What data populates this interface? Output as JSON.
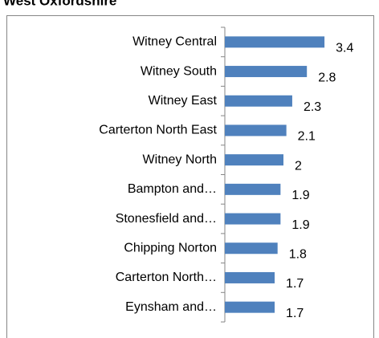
{
  "chart_data": {
    "type": "bar",
    "orientation": "horizontal",
    "title": "West Oxfordshire",
    "categories": [
      "Witney Central",
      "Witney South",
      "Witney East",
      "Carterton North East",
      "Witney North",
      "Bampton and…",
      "Stonesfield and…",
      "Chipping Norton",
      "Carterton North…",
      "Eynsham and…"
    ],
    "values": [
      3.4,
      2.8,
      2.3,
      2.1,
      2,
      1.9,
      1.9,
      1.8,
      1.7,
      1.7
    ],
    "color": "#4f81bd"
  }
}
